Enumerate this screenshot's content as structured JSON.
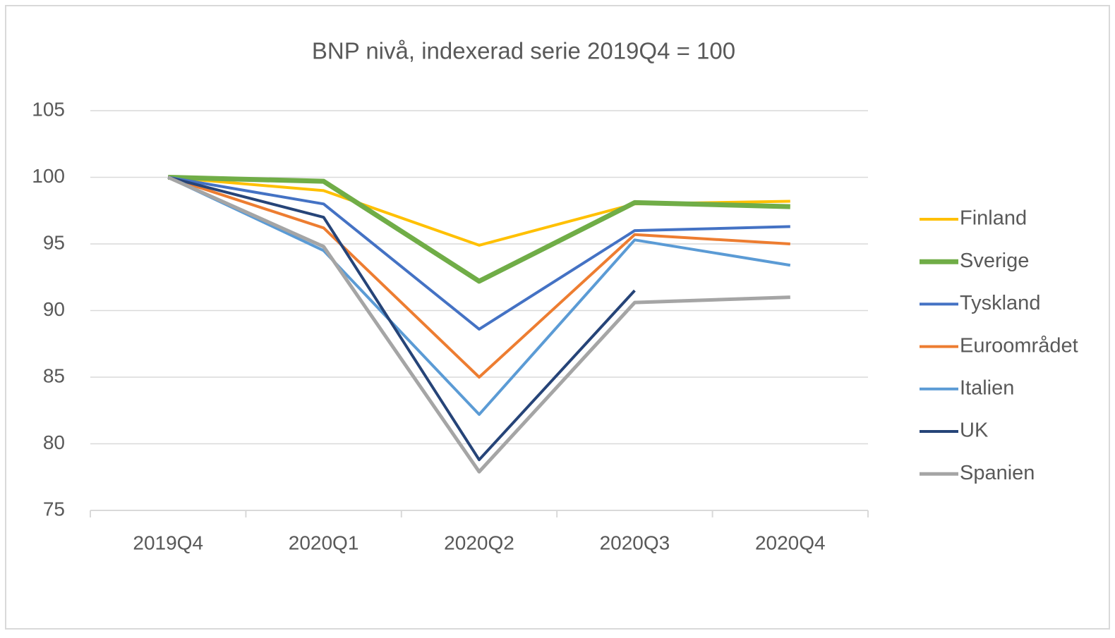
{
  "chart_data": {
    "type": "line",
    "title": "BNP nivå, indexerad serie 2019Q4 = 100",
    "categories": [
      "2019Q4",
      "2020Q1",
      "2020Q2",
      "2020Q3",
      "2020Q4"
    ],
    "series": [
      {
        "name": "Finland",
        "color": "#FFC000",
        "width": 4,
        "values": [
          100,
          99.0,
          94.9,
          98.0,
          98.2
        ]
      },
      {
        "name": "Sverige",
        "color": "#70AD47",
        "width": 7,
        "values": [
          100,
          99.7,
          92.2,
          98.1,
          97.8
        ]
      },
      {
        "name": "Tyskland",
        "color": "#4472C4",
        "width": 4,
        "values": [
          100,
          98.0,
          88.6,
          96.0,
          96.3
        ]
      },
      {
        "name": "Euroområdet",
        "color": "#ED7D31",
        "width": 4,
        "values": [
          100,
          96.2,
          85.0,
          95.7,
          95.0
        ]
      },
      {
        "name": "Italien",
        "color": "#5B9BD5",
        "width": 4,
        "values": [
          100,
          94.5,
          82.2,
          95.3,
          93.4
        ]
      },
      {
        "name": "UK",
        "color": "#264478",
        "width": 4,
        "values": [
          100,
          97.0,
          78.8,
          91.5,
          null
        ]
      },
      {
        "name": "Spanien",
        "color": "#A5A5A5",
        "width": 5,
        "values": [
          100,
          94.8,
          77.9,
          90.6,
          91.0
        ]
      }
    ],
    "ylim": [
      75,
      105
    ],
    "yticks": [
      75,
      80,
      85,
      90,
      95,
      100,
      105
    ],
    "grid": true,
    "legend": "right"
  }
}
